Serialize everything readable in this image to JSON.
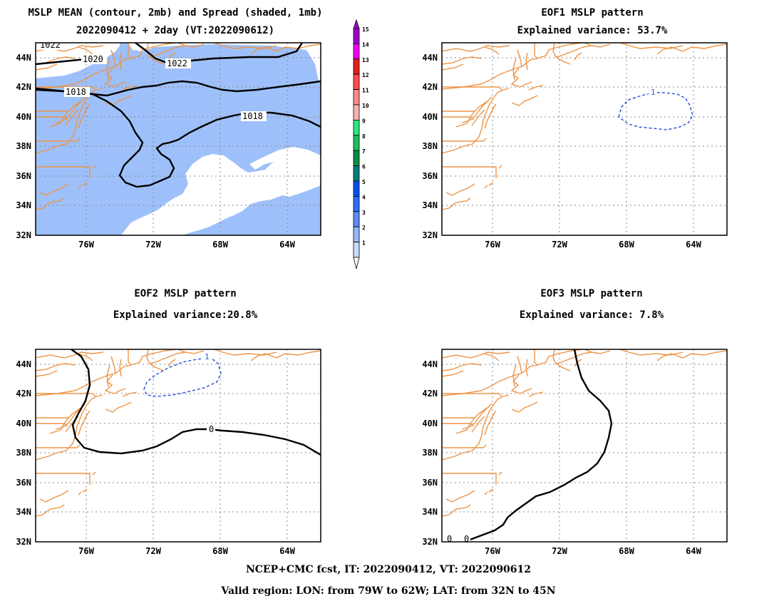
{
  "panels": [
    {
      "id": "p1",
      "title1": "MSLP MEAN (contour, 2mb) and Spread (shaded, 1mb)",
      "title2": "2022090412 + 2day (VT:2022090612)",
      "contour_labels": [
        "1022",
        "1020",
        "1022",
        "1018",
        "1018"
      ]
    },
    {
      "id": "p2",
      "title1": "EOF1 MSLP pattern",
      "title2": "Explained variance: 53.7%",
      "contour_labels": [
        "1"
      ]
    },
    {
      "id": "p3",
      "title1": "EOF2 MSLP pattern",
      "title2": "Explained variance:20.8%",
      "contour_labels": [
        "1",
        "0"
      ]
    },
    {
      "id": "p4",
      "title1": "EOF3 MSLP pattern",
      "title2": "Explained variance: 7.8%",
      "contour_labels": [
        "0",
        "0"
      ]
    }
  ],
  "lat_ticks": [
    "44N",
    "42N",
    "40N",
    "38N",
    "36N",
    "34N",
    "32N"
  ],
  "lon_ticks": [
    "76W",
    "72W",
    "68W",
    "64W"
  ],
  "colorbar": {
    "labels": [
      "15",
      "14",
      "13",
      "12",
      "11",
      "10",
      "9",
      "8",
      "7",
      "6",
      "5",
      "4",
      "3",
      "2",
      "1"
    ],
    "colors": [
      "#a000c8",
      "#f000f0",
      "#e11f1f",
      "#ff4c4c",
      "#ff8c8c",
      "#f5b2b2",
      "#2ee67d",
      "#1cbe5a",
      "#0a8c46",
      "#007d7d",
      "#0050f0",
      "#2f6cf5",
      "#5f8cf8",
      "#96b8fb",
      "#c8dcfd"
    ]
  },
  "colors": {
    "shade": "#9ec0fa",
    "coast": "#ee9444",
    "contour": "#000000",
    "eof_positive": "#3355dd",
    "grid": "#888888"
  },
  "footer": {
    "line1": "NCEP+CMC fcst, IT: 2022090412, VT: 2022090612",
    "line2": "Valid region: LON: from 79W to 62W; LAT: from 32N to 45N"
  }
}
